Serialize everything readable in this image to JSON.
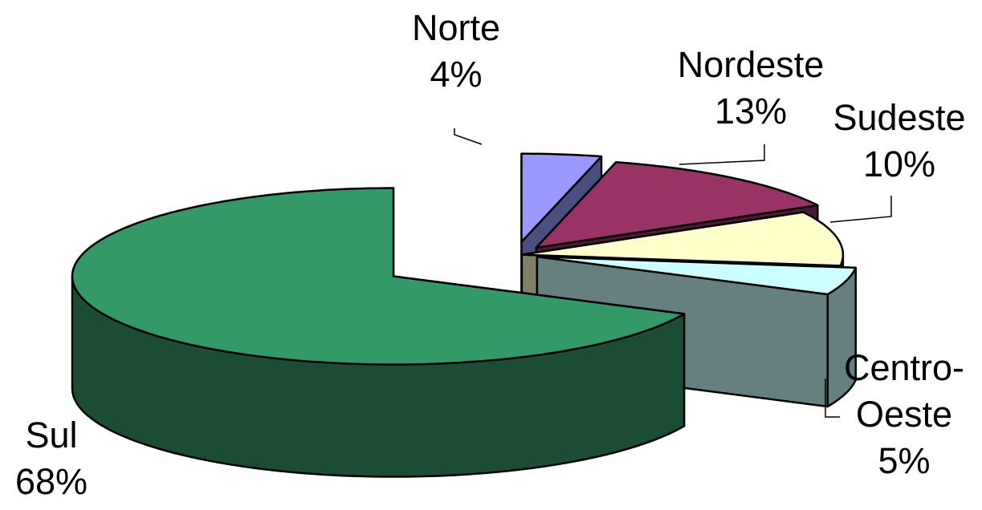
{
  "chart_data": {
    "type": "pie",
    "style": "3d-exploded",
    "slices": [
      {
        "name": "Norte",
        "value": 4,
        "label": "4%",
        "color": "#9999FF",
        "side_color": "#4B4F80"
      },
      {
        "name": "Nordeste",
        "value": 13,
        "label": "13%",
        "color": "#993366",
        "side_color": "#4D1A33"
      },
      {
        "name": "Sudeste",
        "value": 10,
        "label": "10%",
        "color": "#FFFFCC",
        "side_color": "#808066"
      },
      {
        "name": "Centro-Oeste",
        "name_lines": [
          "Centro-",
          "Oeste"
        ],
        "value": 5,
        "label": "5%",
        "color": "#CCFFFF",
        "side_color": "#668080"
      },
      {
        "name": "Sul",
        "value": 68,
        "label": "68%",
        "color": "#339966",
        "side_color": "#1A4D33"
      }
    ],
    "legend": "none",
    "data_labels": "category-and-percent"
  }
}
